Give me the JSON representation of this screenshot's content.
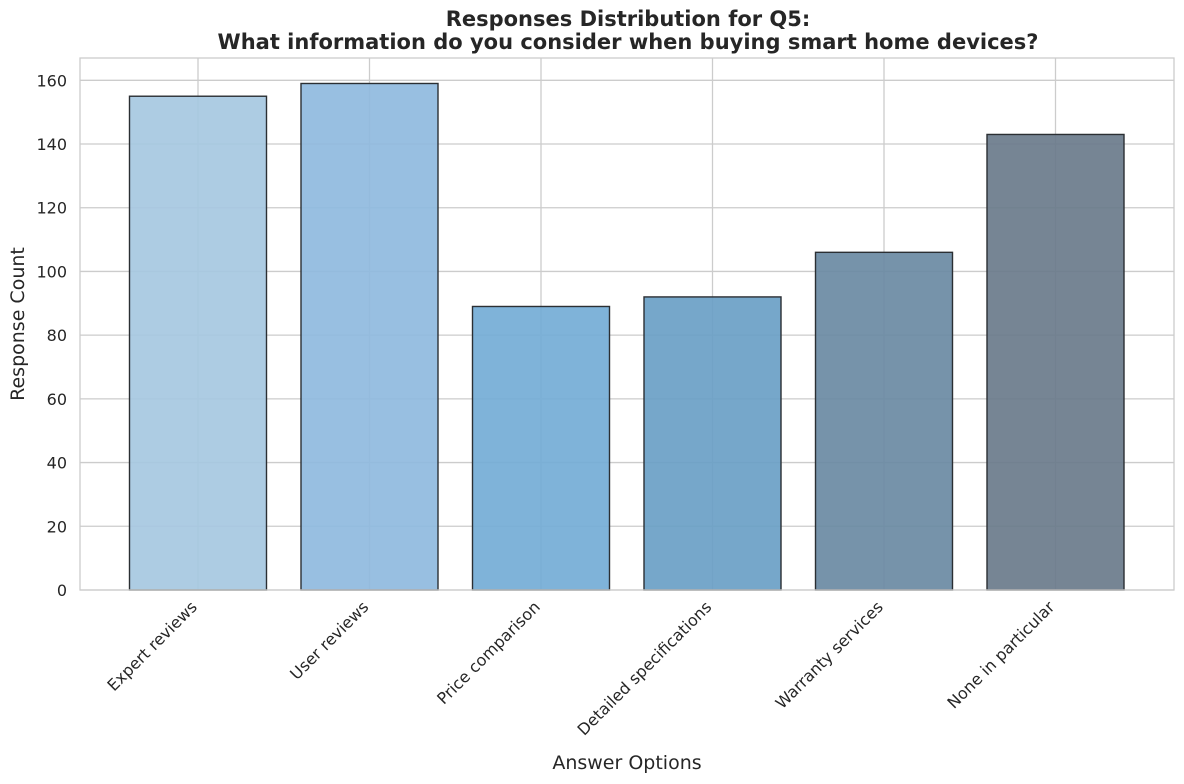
{
  "chart_data": {
    "type": "bar",
    "title_line1": "Responses Distribution for Q5:",
    "title_line2": "What information do you consider when buying smart home devices?",
    "xlabel": "Answer Options",
    "ylabel": "Response Count",
    "categories": [
      "Expert reviews",
      "User reviews",
      "Price comparison",
      "Detailed specifications",
      "Warranty services",
      "None in particular"
    ],
    "values": [
      155,
      159,
      89,
      92,
      106,
      143
    ],
    "colors": [
      "#a6c8e1",
      "#8fbade",
      "#74acd6",
      "#6a9fc5",
      "#6a8aa3",
      "#6a7b8b"
    ],
    "ylim": [
      0,
      167
    ],
    "yticks": [
      "0",
      "20",
      "40",
      "60",
      "80",
      "100",
      "120",
      "140",
      "160"
    ],
    "grid": true,
    "legend": "none"
  }
}
